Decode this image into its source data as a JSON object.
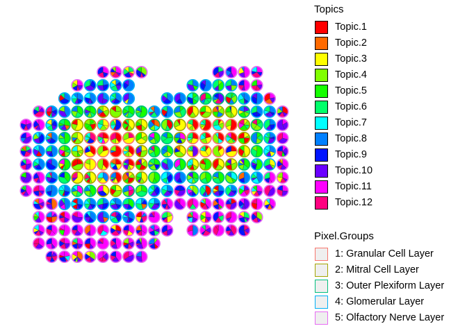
{
  "chart_data": {
    "type": "scatter",
    "title": "",
    "xlabel": "",
    "ylabel": "",
    "marker": "pie-chart spots (topic proportions per spot, outline = pixel group)",
    "topics_legend": {
      "title": "Topics",
      "entries": [
        {
          "label": "Topic.1",
          "color": "#FF0000"
        },
        {
          "label": "Topic.2",
          "color": "#FF6A00"
        },
        {
          "label": "Topic.3",
          "color": "#FFFF00"
        },
        {
          "label": "Topic.4",
          "color": "#80FF00"
        },
        {
          "label": "Topic.5",
          "color": "#15FF00"
        },
        {
          "label": "Topic.6",
          "color": "#00FF6A"
        },
        {
          "label": "Topic.7",
          "color": "#00FFFF"
        },
        {
          "label": "Topic.8",
          "color": "#0080FF"
        },
        {
          "label": "Topic.9",
          "color": "#0015FF"
        },
        {
          "label": "Topic.10",
          "color": "#6A00FF"
        },
        {
          "label": "Topic.11",
          "color": "#FF00FF"
        },
        {
          "label": "Topic.12",
          "color": "#FF0080"
        }
      ]
    },
    "groups_legend": {
      "title": "Pixel.Groups",
      "entries": [
        {
          "label": "1: Granular Cell Layer",
          "color": "#F8766D"
        },
        {
          "label": "2: Mitral Cell Layer",
          "color": "#A3A500"
        },
        {
          "label": "3: Outer Plexiform Layer",
          "color": "#00BF7D"
        },
        {
          "label": "4: Glomerular Layer",
          "color": "#00B0F6"
        },
        {
          "label": "5: Olfactory Nerve Layer",
          "color": "#E76BF3"
        }
      ]
    },
    "grid": false,
    "legend_position": "right",
    "spot_rows": [
      {
        "y": 16,
        "x": [
          7,
          8,
          9,
          10,
          16,
          17,
          18,
          19
        ]
      },
      {
        "y": 15,
        "x": [
          5,
          6,
          7,
          8,
          9,
          14,
          15,
          16,
          17,
          18,
          19
        ]
      },
      {
        "y": 14,
        "x": [
          4,
          5,
          6,
          7,
          8,
          9,
          12,
          13,
          14,
          15,
          16,
          17,
          18,
          19,
          20
        ]
      },
      {
        "y": 13,
        "x": [
          2,
          3,
          4,
          5,
          6,
          7,
          8,
          9,
          10,
          11,
          12,
          13,
          14,
          15,
          16,
          17,
          18,
          19,
          20,
          21
        ]
      },
      {
        "y": 12,
        "x": [
          1,
          2,
          3,
          4,
          5,
          6,
          7,
          8,
          9,
          10,
          11,
          12,
          13,
          14,
          15,
          16,
          17,
          18,
          19,
          20,
          21
        ]
      },
      {
        "y": 11,
        "x": [
          1,
          2,
          3,
          4,
          5,
          6,
          7,
          8,
          9,
          10,
          11,
          12,
          13,
          14,
          15,
          16,
          17,
          18,
          19,
          20,
          21
        ]
      },
      {
        "y": 10,
        "x": [
          1,
          2,
          3,
          4,
          5,
          6,
          7,
          8,
          9,
          10,
          11,
          12,
          13,
          14,
          15,
          16,
          17,
          18,
          19,
          20,
          21
        ]
      },
      {
        "y": 9,
        "x": [
          1,
          2,
          3,
          4,
          5,
          6,
          7,
          8,
          9,
          10,
          11,
          12,
          13,
          14,
          15,
          16,
          17,
          18,
          19,
          20,
          21
        ]
      },
      {
        "y": 8,
        "x": [
          1,
          2,
          3,
          4,
          5,
          6,
          7,
          8,
          9,
          10,
          11,
          12,
          13,
          14,
          15,
          16,
          17,
          18,
          19,
          20,
          21
        ]
      },
      {
        "y": 7,
        "x": [
          1,
          2,
          3,
          4,
          5,
          6,
          7,
          8,
          9,
          10,
          11,
          12,
          13,
          14,
          15,
          16,
          17,
          18,
          19,
          20,
          21
        ]
      },
      {
        "y": 6,
        "x": [
          2,
          3,
          4,
          5,
          6,
          7,
          8,
          9,
          10,
          11,
          12,
          13,
          14,
          15,
          16,
          17,
          18,
          19,
          20
        ]
      },
      {
        "y": 5,
        "x": [
          2,
          3,
          4,
          5,
          6,
          7,
          8,
          9,
          10,
          11,
          12,
          14,
          15,
          16,
          17,
          18,
          19
        ]
      },
      {
        "y": 4,
        "x": [
          2,
          3,
          4,
          5,
          6,
          7,
          8,
          9,
          10,
          11,
          12,
          14,
          15,
          16,
          17,
          18
        ]
      },
      {
        "y": 3,
        "x": [
          2,
          3,
          4,
          5,
          6,
          7,
          8,
          9,
          10,
          11
        ]
      },
      {
        "y": 2,
        "x": [
          3,
          4,
          5,
          6,
          7,
          8,
          9,
          10
        ]
      }
    ],
    "xlim": [
      0,
      22
    ],
    "ylim": [
      1,
      17
    ]
  }
}
